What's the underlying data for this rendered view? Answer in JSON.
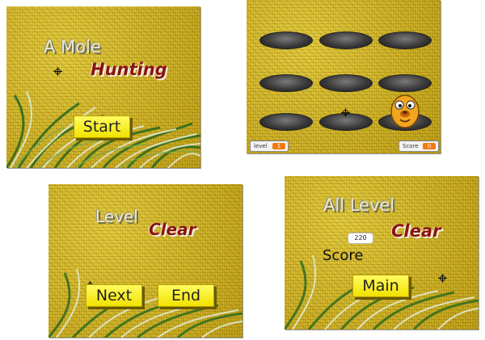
{
  "colors": {
    "button": "#f5e600",
    "title_red": "#8a1410",
    "title_light": "#e9e9d8",
    "field": "#c9ac1a"
  },
  "title_screen": {
    "title_line1": "A Mole",
    "title_line2": "Hunting",
    "start_label": "Start",
    "cursor_icon": "crosshair-icon"
  },
  "game_screen": {
    "holes": 9,
    "mole_icon": "mole-icon",
    "level_label": "level",
    "level_value": "1",
    "score_label": "Score",
    "score_value": "0"
  },
  "level_clear_screen": {
    "word1": "Level",
    "word2": "Clear",
    "next_label": "Next",
    "end_label": "End"
  },
  "all_clear_screen": {
    "word1": "All Level",
    "word2": "Clear",
    "score_value": "220",
    "score_label": "Score",
    "main_label": "Main"
  }
}
